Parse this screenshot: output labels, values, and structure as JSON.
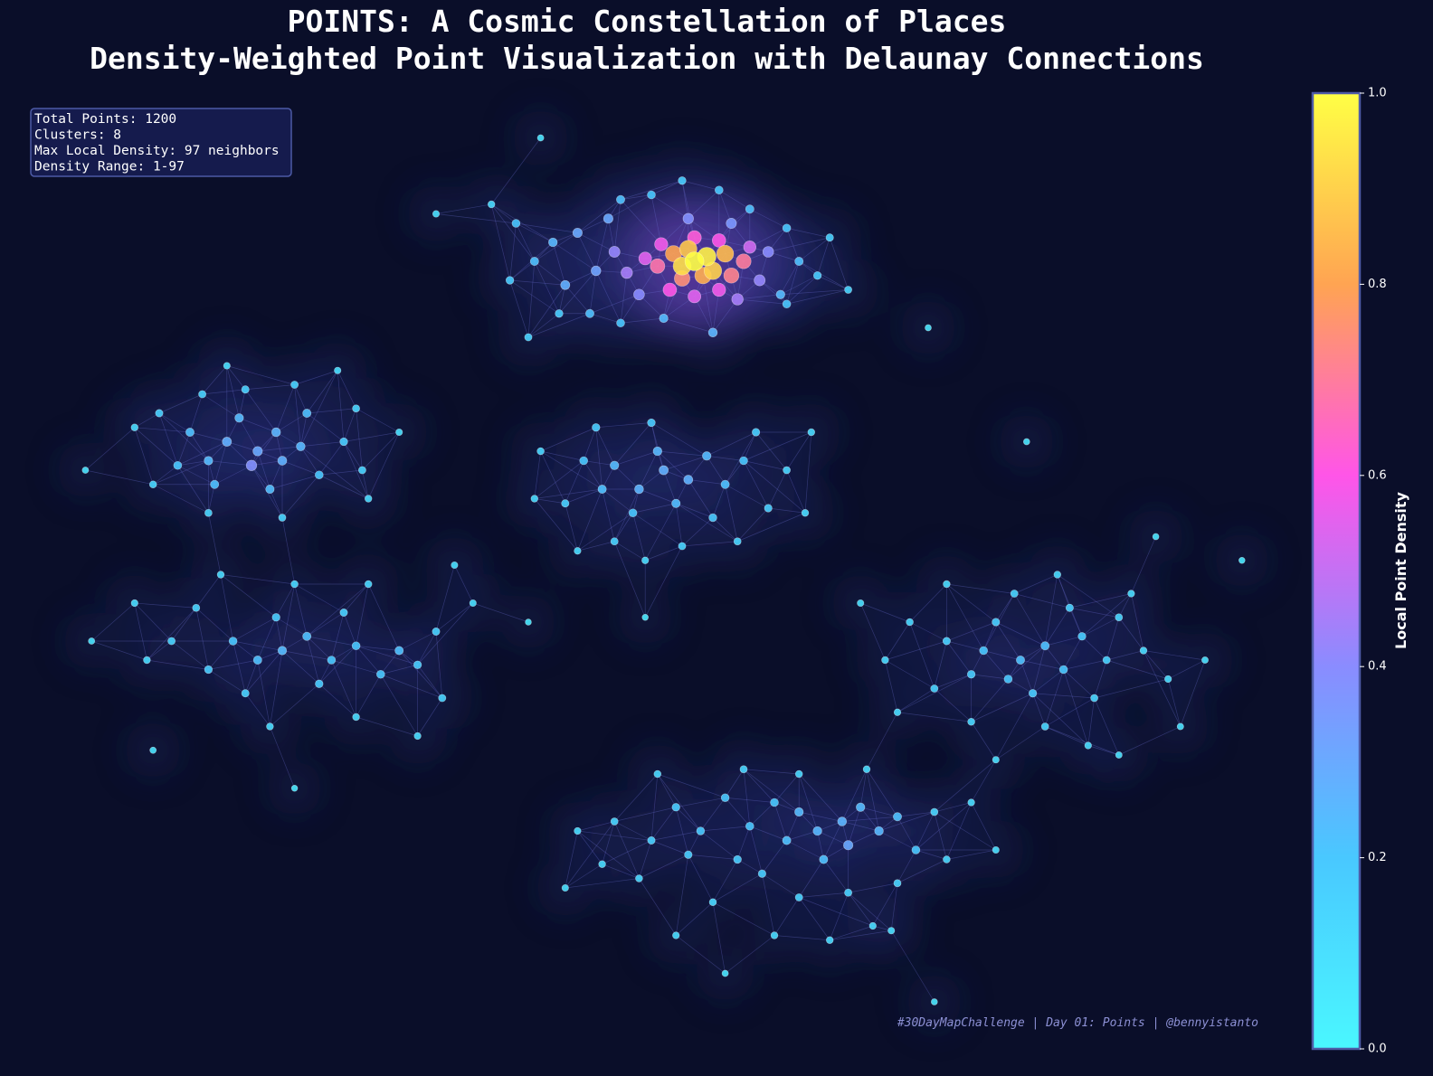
{
  "chart_data": {
    "type": "scatter",
    "title": "POINTS: A Cosmic Constellation of Places",
    "subtitle": "Density-Weighted Point Visualization with Delaunay Connections",
    "info_lines": [
      "Total Points: 1200",
      "Clusters: 8",
      "Max Local Density: 97 neighbors",
      "Density Range: 1-97"
    ],
    "footer": "#30DayMapChallenge | Day 01: Points | @bennyistanto",
    "colormap": [
      "#4af7ff",
      "#49c8ff",
      "#8a8cff",
      "#ff55e8",
      "#ffa452",
      "#ffff45"
    ],
    "xlim": [
      0,
      100
    ],
    "ylim": [
      0,
      100
    ],
    "colorbar": {
      "label": "Local Point Density",
      "lim": [
        0,
        1
      ],
      "ticks": [
        {
          "value": 0,
          "label": "0.0"
        },
        0.2,
        0.4,
        0.6,
        0.8,
        {
          "value": 1,
          "label": "1.0"
        }
      ]
    },
    "x": [
      53.5,
      54.5,
      52.5,
      55,
      53,
      56,
      51.8,
      54.2,
      52.5,
      56.5,
      50.5,
      57.5,
      53.5,
      55.5,
      50.8,
      49.5,
      58,
      51.5,
      55.5,
      53.5,
      48,
      47,
      49,
      58.8,
      59.5,
      57,
      53,
      56.5,
      44,
      45.5,
      43,
      46.5,
      42,
      40.5,
      39,
      47.5,
      50,
      52.5,
      55.5,
      58,
      61,
      62,
      60.5,
      63.5,
      64.5,
      61,
      45,
      47.5,
      51,
      55,
      42.5,
      38.5,
      40,
      66,
      37,
      32.5,
      41,
      51,
      49,
      53,
      50.5,
      47,
      54.5,
      46,
      52,
      56,
      48.5,
      44.5,
      57.5,
      55,
      45.5,
      50,
      58.5,
      59.5,
      43,
      47,
      52.5,
      57,
      61,
      41,
      40.5,
      63,
      62.5,
      44,
      49.5,
      18,
      17.5,
      15.5,
      20,
      19.5,
      21.5,
      14,
      16.5,
      22,
      12.5,
      14.5,
      19,
      23,
      11.5,
      25,
      10,
      17,
      21,
      13.5,
      26.5,
      26,
      8,
      9.5,
      14,
      20,
      27,
      29.5,
      4,
      24.5,
      15.5,
      20,
      18,
      22,
      24,
      16,
      26,
      29.5,
      28,
      14,
      19.5,
      23,
      31,
      11,
      17,
      25,
      13,
      9,
      32.5,
      33,
      21,
      27,
      15,
      8,
      19,
      26,
      31,
      35.5,
      34,
      4.5,
      9.5,
      80,
      82,
      79,
      83.5,
      77,
      81,
      85,
      76,
      78,
      84,
      87,
      74,
      73,
      79.5,
      88,
      86,
      71,
      82,
      76,
      90,
      92,
      69,
      74,
      83,
      89,
      70,
      85.5,
      78,
      95,
      93,
      67,
      88,
      65.5,
      63.5,
      67,
      68.5,
      62,
      66,
      64,
      70,
      61,
      60,
      71.5,
      58,
      56,
      54,
      52,
      57,
      53,
      50,
      59,
      62,
      66,
      70,
      73,
      74,
      47,
      49,
      55,
      60,
      64.5,
      52,
      46,
      44,
      57.5,
      62,
      50.5,
      67.5,
      76,
      78,
      43,
      69.5,
      56,
      73,
      68,
      80.5,
      91,
      98,
      21,
      49.5,
      40,
      72.5
    ],
    "y": [
      82,
      82.5,
      81.5,
      81,
      83.3,
      82.8,
      82.8,
      80.5,
      80.2,
      80.5,
      81.5,
      82,
      84.5,
      84.2,
      83.8,
      82.3,
      83.5,
      79,
      79,
      78.3,
      80.8,
      83,
      78.5,
      80,
      83,
      78,
      86.5,
      86,
      85,
      81,
      79.5,
      86.5,
      84,
      82,
      86,
      88.5,
      89,
      90.5,
      89.5,
      87.5,
      85.5,
      82,
      78.5,
      80.5,
      84.5,
      77.5,
      76.5,
      75.5,
      76,
      74.5,
      76.5,
      80,
      74,
      79,
      88,
      87,
      95,
      60,
      58,
      59,
      62,
      60.5,
      61.5,
      58,
      56.5,
      58.5,
      55.5,
      61,
      61,
      55,
      64.5,
      65,
      64,
      56,
      56.5,
      52.5,
      52,
      52.5,
      60,
      62,
      57,
      64,
      55.5,
      51.5,
      50.5,
      62,
      60.5,
      63,
      61,
      64,
      62.5,
      61,
      65.5,
      66,
      64,
      58.5,
      58,
      59.5,
      60.5,
      63,
      66,
      68.5,
      69,
      68,
      60,
      66.5,
      64.5,
      58.5,
      55.5,
      55,
      57,
      64,
      60,
      70.5,
      71,
      41,
      40,
      42.5,
      40,
      42,
      41.5,
      41,
      38.5,
      39,
      44.5,
      37.5,
      39.5,
      42,
      36.5,
      45,
      45.5,
      40,
      43,
      36,
      48,
      48,
      49,
      46,
      33,
      34,
      32,
      46,
      50,
      42,
      30.5,
      40,
      41.5,
      38,
      39,
      41,
      36.5,
      42.5,
      38.5,
      44,
      45.5,
      40,
      42,
      37,
      47,
      44.5,
      36,
      44,
      33,
      33.5,
      41,
      38,
      40,
      48,
      49,
      47,
      34.5,
      31,
      29.5,
      40,
      33,
      46,
      30,
      23,
      22,
      24.5,
      22,
      24,
      20.5,
      19,
      23.5,
      21,
      25,
      20,
      22.5,
      25.5,
      22,
      24.5,
      19,
      19.5,
      21,
      17.5,
      15,
      15.5,
      16.5,
      24,
      19,
      23,
      17,
      14.5,
      11,
      10.5,
      11,
      18.5,
      22,
      28.5,
      28,
      28,
      28.5,
      25,
      20,
      16,
      11.5,
      7,
      4,
      12,
      63,
      53,
      50.5,
      26.5,
      44.5,
      44,
      75
    ],
    "values": [
      1.0,
      0.97,
      0.93,
      0.9,
      0.88,
      0.85,
      0.8,
      0.82,
      0.75,
      0.72,
      0.68,
      0.7,
      0.62,
      0.6,
      0.58,
      0.55,
      0.52,
      0.6,
      0.58,
      0.55,
      0.45,
      0.42,
      0.4,
      0.42,
      0.4,
      0.45,
      0.38,
      0.36,
      0.3,
      0.32,
      0.28,
      0.3,
      0.25,
      0.22,
      0.2,
      0.22,
      0.2,
      0.18,
      0.2,
      0.22,
      0.2,
      0.22,
      0.24,
      0.18,
      0.16,
      0.2,
      0.22,
      0.2,
      0.24,
      0.26,
      0.18,
      0.18,
      0.15,
      0.14,
      0.12,
      0.1,
      0.08,
      0.28,
      0.26,
      0.27,
      0.25,
      0.24,
      0.24,
      0.22,
      0.23,
      0.22,
      0.2,
      0.2,
      0.2,
      0.19,
      0.18,
      0.18,
      0.17,
      0.17,
      0.16,
      0.15,
      0.15,
      0.14,
      0.14,
      0.13,
      0.12,
      0.12,
      0.12,
      0.11,
      0.11,
      0.3,
      0.38,
      0.28,
      0.27,
      0.26,
      0.25,
      0.24,
      0.24,
      0.22,
      0.22,
      0.22,
      0.23,
      0.2,
      0.2,
      0.18,
      0.16,
      0.16,
      0.15,
      0.15,
      0.15,
      0.14,
      0.12,
      0.13,
      0.14,
      0.14,
      0.12,
      0.1,
      0.08,
      0.1,
      0.1,
      0.24,
      0.22,
      0.22,
      0.2,
      0.2,
      0.2,
      0.22,
      0.2,
      0.18,
      0.18,
      0.18,
      0.18,
      0.15,
      0.16,
      0.16,
      0.14,
      0.12,
      0.16,
      0.15,
      0.13,
      0.13,
      0.12,
      0.11,
      0.12,
      0.12,
      0.11,
      0.1,
      0.1,
      0.08,
      0.08,
      0.22,
      0.22,
      0.2,
      0.2,
      0.2,
      0.18,
      0.18,
      0.18,
      0.17,
      0.16,
      0.15,
      0.16,
      0.15,
      0.15,
      0.14,
      0.14,
      0.13,
      0.14,
      0.13,
      0.12,
      0.11,
      0.12,
      0.12,
      0.12,
      0.11,
      0.11,
      0.11,
      0.1,
      0.09,
      0.09,
      0.1,
      0.09,
      0.26,
      0.25,
      0.24,
      0.25,
      0.24,
      0.3,
      0.22,
      0.22,
      0.22,
      0.2,
      0.2,
      0.2,
      0.19,
      0.19,
      0.18,
      0.18,
      0.17,
      0.16,
      0.17,
      0.15,
      0.15,
      0.14,
      0.14,
      0.13,
      0.14,
      0.13,
      0.13,
      0.12,
      0.12,
      0.11,
      0.12,
      0.11,
      0.14,
      0.13,
      0.13,
      0.12,
      0.11,
      0.1,
      0.1,
      0.1,
      0.08,
      0.07,
      0.11,
      0.07,
      0.07,
      0.06,
      0.06,
      0.06,
      0.06,
      0.07
    ]
  }
}
